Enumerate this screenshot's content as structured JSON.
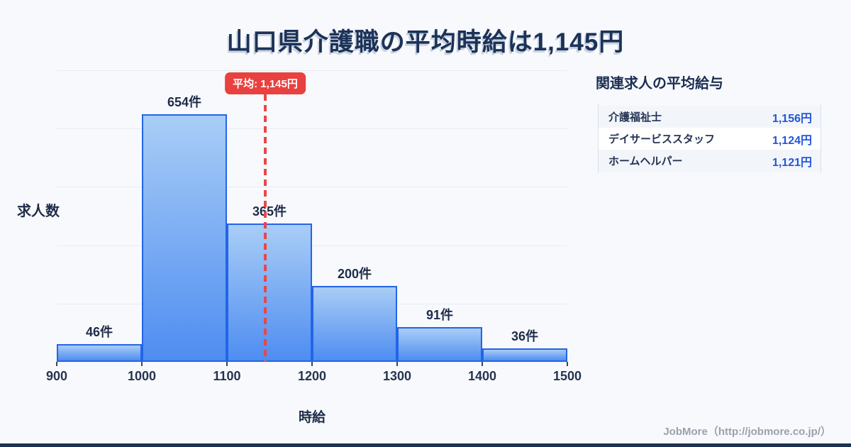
{
  "title": "山口県介護職の平均時給は1,145円",
  "chart_data": {
    "type": "bar",
    "title": "山口県介護職の平均時給は1,145円",
    "xlabel": "時給",
    "ylabel": "求人数",
    "categories": [
      "900-1000",
      "1000-1100",
      "1100-1200",
      "1200-1300",
      "1300-1400",
      "1400-1500"
    ],
    "x_ticks": [
      "900",
      "1000",
      "1100",
      "1200",
      "1300",
      "1400",
      "1500"
    ],
    "values": [
      46,
      654,
      365,
      200,
      91,
      36
    ],
    "bar_labels": [
      "46件",
      "654件",
      "365件",
      "200件",
      "91件",
      "36件"
    ],
    "xlim": [
      900,
      1500
    ],
    "ylim": [
      0,
      770
    ],
    "grid": true,
    "mean_line": {
      "value": 1145,
      "label": "平均: 1,145円"
    },
    "colors": {
      "bar_fill_top": "#a9cdf6",
      "bar_fill_bottom": "#4e8df1",
      "bar_border": "#2365e8",
      "mean_red": "#e8474a",
      "gridline": "#e7ecf4"
    }
  },
  "axis": {
    "y_title": "求人数",
    "x_title": "時給"
  },
  "sidebar": {
    "heading": "関連求人の平均給与",
    "rows": [
      {
        "label": "介護福祉士",
        "value": "1,156円"
      },
      {
        "label": "デイサービススタッフ",
        "value": "1,124円"
      },
      {
        "label": "ホームヘルパー",
        "value": "1,121円"
      }
    ]
  },
  "footer": {
    "credit": "JobMore（http://jobmore.co.jp/）"
  }
}
